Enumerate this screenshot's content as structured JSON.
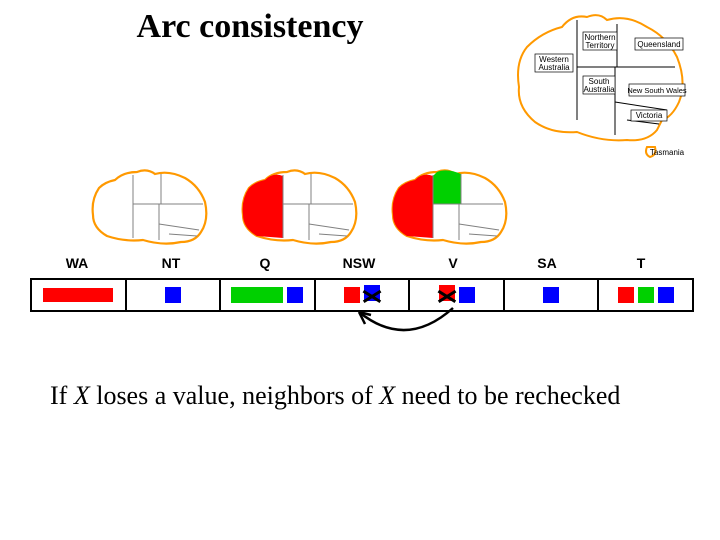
{
  "title": "Arc consistency",
  "body_text_parts": {
    "p1": "If ",
    "x1": "X",
    "p2": " loses a value, neighbors of ",
    "x2": "X",
    "p3": " need to be rechecked"
  },
  "colors": {
    "red": "#ff0000",
    "green": "#00d000",
    "blue": "#0000ff",
    "black": "#000000",
    "outline": "#ff9900",
    "inner_line": "#808080"
  },
  "reference_map": {
    "outline_color": "#ff9900",
    "border_color": "#000000",
    "label_font": "Arial",
    "label_fontsize": 9,
    "regions": [
      "Western Australia",
      "Northern Territory",
      "Queensland",
      "South Australia",
      "New South Wales",
      "Victoria",
      "Tasmania"
    ]
  },
  "mini_maps": {
    "outline_color": "#ff9900",
    "inner_line_color": "#808080",
    "states": [
      {
        "wa_fill": "none",
        "nt_fill": "none",
        "q_fill": "none"
      },
      {
        "wa_fill": "#ff0000",
        "nt_fill": "none",
        "q_fill": "none"
      },
      {
        "wa_fill": "#ff0000",
        "nt_fill": "#00d000",
        "q_fill": "none"
      }
    ]
  },
  "columns": [
    {
      "key": "WA",
      "label": "WA",
      "width": 94
    },
    {
      "key": "NT",
      "label": "NT",
      "width": 94
    },
    {
      "key": "Q",
      "label": "Q",
      "width": 94
    },
    {
      "key": "NSW",
      "label": "NSW",
      "width": 94
    },
    {
      "key": "V",
      "label": "V",
      "width": 94
    },
    {
      "key": "SA",
      "label": "SA",
      "width": 94
    },
    {
      "key": "T",
      "label": "T",
      "width": 94
    }
  ],
  "domains": {
    "WA": [
      {
        "color": "#ff0000",
        "w": 70,
        "h": 14,
        "crossed": false
      }
    ],
    "NT": [
      {
        "color": "#0000ff",
        "w": 16,
        "h": 16,
        "crossed": false
      }
    ],
    "Q": [
      {
        "color": "#00d000",
        "w": 52,
        "h": 16,
        "crossed": false
      },
      {
        "color": "#0000ff",
        "w": 16,
        "h": 16,
        "crossed": false
      }
    ],
    "NSW": [
      {
        "color": "#ff0000",
        "w": 16,
        "h": 16,
        "crossed": false
      },
      {
        "color": "#0000ff",
        "w": 16,
        "h": 16,
        "crossed": true
      }
    ],
    "V": [
      {
        "color": "#ff0000",
        "w": 16,
        "h": 16,
        "crossed": true
      },
      {
        "color": "#0000ff",
        "w": 16,
        "h": 16,
        "crossed": false
      }
    ],
    "SA": [
      {
        "color": "#0000ff",
        "w": 16,
        "h": 16,
        "crossed": false
      }
    ],
    "T": [
      {
        "color": "#ff0000",
        "w": 16,
        "h": 16,
        "crossed": false
      },
      {
        "color": "#00d000",
        "w": 16,
        "h": 16,
        "crossed": false
      },
      {
        "color": "#0000ff",
        "w": 16,
        "h": 16,
        "crossed": false
      }
    ]
  },
  "arc": {
    "from_col": "V",
    "to_col": "NSW",
    "stroke": "#000000",
    "stroke_width": 2.5
  }
}
